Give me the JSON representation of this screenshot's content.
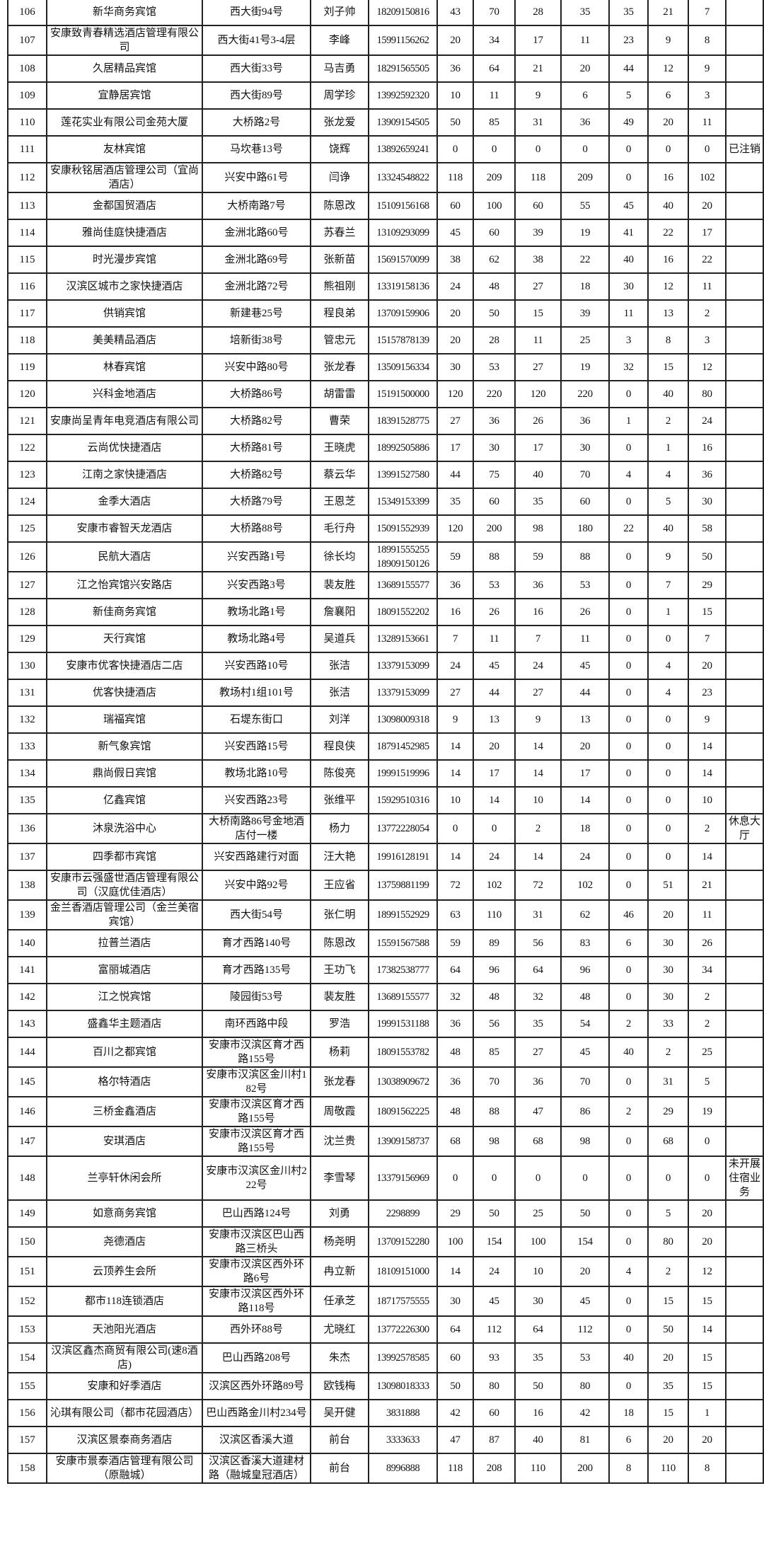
{
  "table": {
    "rows": [
      [
        "106",
        "新华商务宾馆",
        "西大街94号",
        "刘子帅",
        "18209150816",
        "43",
        "70",
        "28",
        "35",
        "35",
        "21",
        "7",
        ""
      ],
      [
        "107",
        "安康致青春精选酒店管理有限公司",
        "西大街41号3-4层",
        "李峰",
        "15991156262",
        "20",
        "34",
        "17",
        "11",
        "23",
        "9",
        "8",
        ""
      ],
      [
        "108",
        "久居精品宾馆",
        "西大街33号",
        "马吉勇",
        "18291565505",
        "36",
        "64",
        "21",
        "20",
        "44",
        "12",
        "9",
        ""
      ],
      [
        "109",
        "宜静居宾馆",
        "西大街89号",
        "周学珍",
        "13992592320",
        "10",
        "11",
        "9",
        "6",
        "5",
        "6",
        "3",
        ""
      ],
      [
        "110",
        "莲花实业有限公司金苑大厦",
        "大桥路2号",
        "张龙爱",
        "13909154505",
        "50",
        "85",
        "31",
        "36",
        "49",
        "20",
        "11",
        ""
      ],
      [
        "111",
        "友林宾馆",
        "马坎巷13号",
        "饶辉",
        "13892659241",
        "0",
        "0",
        "0",
        "0",
        "0",
        "0",
        "0",
        "已注销"
      ],
      [
        "112",
        "安康秋铭居酒店管理公司（宜尚酒店）",
        "兴安中路61号",
        "闫诤",
        "13324548822",
        "118",
        "209",
        "118",
        "209",
        "0",
        "16",
        "102",
        ""
      ],
      [
        "113",
        "金都国贸酒店",
        "大桥南路7号",
        "陈恩改",
        "15109156168",
        "60",
        "100",
        "60",
        "55",
        "45",
        "40",
        "20",
        ""
      ],
      [
        "114",
        "雅尚佳庭快捷酒店",
        "金洲北路60号",
        "苏春兰",
        "13109293099",
        "45",
        "60",
        "39",
        "19",
        "41",
        "22",
        "17",
        ""
      ],
      [
        "115",
        "时光漫步宾馆",
        "金洲北路69号",
        "张新苗",
        "15691570099",
        "38",
        "62",
        "38",
        "22",
        "40",
        "16",
        "22",
        ""
      ],
      [
        "116",
        "汉滨区城市之家快捷酒店",
        "金洲北路72号",
        "熊祖刚",
        "13319158136",
        "24",
        "48",
        "27",
        "18",
        "30",
        "12",
        "11",
        ""
      ],
      [
        "117",
        "供销宾馆",
        "新建巷25号",
        "程良弟",
        "13709159906",
        "20",
        "50",
        "15",
        "39",
        "11",
        "13",
        "2",
        ""
      ],
      [
        "118",
        "美美精品酒店",
        "培新街38号",
        "管忠元",
        "15157878139",
        "20",
        "28",
        "11",
        "25",
        "3",
        "8",
        "3",
        ""
      ],
      [
        "119",
        "林春宾馆",
        "兴安中路80号",
        "张龙春",
        "13509156334",
        "30",
        "53",
        "27",
        "19",
        "32",
        "15",
        "12",
        ""
      ],
      [
        "120",
        "兴科金地酒店",
        "大桥路86号",
        "胡雷雷",
        "15191500000",
        "120",
        "220",
        "120",
        "220",
        "0",
        "40",
        "80",
        ""
      ],
      [
        "121",
        "安康尚呈青年电竞酒店有限公司",
        "大桥路82号",
        "曹荣",
        "18391528775",
        "27",
        "36",
        "26",
        "36",
        "1",
        "2",
        "24",
        ""
      ],
      [
        "122",
        "云尚优快捷酒店",
        "大桥路81号",
        "王晓虎",
        "18992505886",
        "17",
        "30",
        "17",
        "30",
        "0",
        "1",
        "16",
        ""
      ],
      [
        "123",
        "江南之家快捷酒店",
        "大桥路82号",
        "蔡云华",
        "13991527580",
        "44",
        "75",
        "40",
        "70",
        "4",
        "4",
        "36",
        ""
      ],
      [
        "124",
        "金季大酒店",
        "大桥路79号",
        "王恩芝",
        "15349153399",
        "35",
        "60",
        "35",
        "60",
        "0",
        "5",
        "30",
        ""
      ],
      [
        "125",
        "安康市睿智天龙酒店",
        "大桥路88号",
        "毛行舟",
        "15091552939",
        "120",
        "200",
        "98",
        "180",
        "22",
        "40",
        "58",
        ""
      ],
      [
        "126",
        "民航大酒店",
        "兴安西路1号",
        "徐长均",
        "18991555255\n18909150126",
        "59",
        "88",
        "59",
        "88",
        "0",
        "9",
        "50",
        ""
      ],
      [
        "127",
        "江之怡宾馆兴安路店",
        "兴安西路3号",
        "裴友胜",
        "13689155577",
        "36",
        "53",
        "36",
        "53",
        "0",
        "7",
        "29",
        ""
      ],
      [
        "128",
        "新佳商务宾馆",
        "教场北路1号",
        "詹襄阳",
        "18091552202",
        "16",
        "26",
        "16",
        "26",
        "0",
        "1",
        "15",
        ""
      ],
      [
        "129",
        "天行宾馆",
        "教场北路4号",
        "吴道兵",
        "13289153661",
        "7",
        "11",
        "7",
        "11",
        "0",
        "0",
        "7",
        ""
      ],
      [
        "130",
        "安康市优客快捷酒店二店",
        "兴安西路10号",
        "张洁",
        "13379153099",
        "24",
        "45",
        "24",
        "45",
        "0",
        "4",
        "20",
        ""
      ],
      [
        "131",
        "优客快捷酒店",
        "教场村1组101号",
        "张洁",
        "13379153099",
        "27",
        "44",
        "27",
        "44",
        "0",
        "4",
        "23",
        ""
      ],
      [
        "132",
        "瑞福宾馆",
        "石堤东街口",
        "刘洋",
        "13098009318",
        "9",
        "13",
        "9",
        "13",
        "0",
        "0",
        "9",
        ""
      ],
      [
        "133",
        "新气象宾馆",
        "兴安西路15号",
        "程良侠",
        "18791452985",
        "14",
        "20",
        "14",
        "20",
        "0",
        "0",
        "14",
        ""
      ],
      [
        "134",
        "鼎尚假日宾馆",
        "教场北路10号",
        "陈俊亮",
        "19991519996",
        "14",
        "17",
        "14",
        "17",
        "0",
        "0",
        "14",
        ""
      ],
      [
        "135",
        "亿鑫宾馆",
        "兴安西路23号",
        "张维平",
        "15929510316",
        "10",
        "14",
        "10",
        "14",
        "0",
        "0",
        "10",
        ""
      ],
      [
        "136",
        "沐泉洗浴中心",
        "大桥南路86号金地酒店付一楼",
        "杨力",
        "13772228054",
        "0",
        "0",
        "2",
        "18",
        "0",
        "0",
        "2",
        "休息大厅"
      ],
      [
        "137",
        "四季都市宾馆",
        "兴安西路建行对面",
        "汪大艳",
        "19916128191",
        "14",
        "24",
        "14",
        "24",
        "0",
        "0",
        "14",
        ""
      ],
      [
        "138",
        "安康市云强盛世酒店管理有限公司（汉庭优佳酒店）",
        "兴安中路92号",
        "王应省",
        "13759881199",
        "72",
        "102",
        "72",
        "102",
        "0",
        "51",
        "21",
        ""
      ],
      [
        "139",
        "金兰香酒店管理公司（金兰美宿宾馆）",
        "西大街54号",
        "张仁明",
        "18991552929",
        "63",
        "110",
        "31",
        "62",
        "46",
        "20",
        "11",
        ""
      ],
      [
        "140",
        "拉普兰酒店",
        "育才西路140号",
        "陈恩改",
        "15591567588",
        "59",
        "89",
        "56",
        "83",
        "6",
        "30",
        "26",
        ""
      ],
      [
        "141",
        "富丽城酒店",
        "育才西路135号",
        "王功飞",
        "17382538777",
        "64",
        "96",
        "64",
        "96",
        "0",
        "30",
        "34",
        ""
      ],
      [
        "142",
        "江之悦宾馆",
        "陵园街53号",
        "裴友胜",
        "13689155577",
        "32",
        "48",
        "32",
        "48",
        "0",
        "30",
        "2",
        ""
      ],
      [
        "143",
        "盛鑫华主题酒店",
        "南环西路中段",
        "罗浩",
        "19991531188",
        "36",
        "56",
        "35",
        "54",
        "2",
        "33",
        "2",
        ""
      ],
      [
        "144",
        "百川之都宾馆",
        "安康市汉滨区育才西路155号",
        "杨莉",
        "18091553782",
        "48",
        "85",
        "27",
        "45",
        "40",
        "2",
        "25",
        ""
      ],
      [
        "145",
        "格尔特酒店",
        "安康市汉滨区金川村182号",
        "张龙春",
        "13038909672",
        "36",
        "70",
        "36",
        "70",
        "0",
        "31",
        "5",
        ""
      ],
      [
        "146",
        "三桥金鑫酒店",
        "安康市汉滨区育才西路155号",
        "周敬霞",
        "18091562225",
        "48",
        "88",
        "47",
        "86",
        "2",
        "29",
        "19",
        ""
      ],
      [
        "147",
        "安琪酒店",
        "安康市汉滨区育才西路155号",
        "沈兰贵",
        "13909158737",
        "68",
        "98",
        "68",
        "98",
        "0",
        "68",
        "0",
        ""
      ],
      [
        "148",
        "兰亭轩休闲会所",
        "安康市汉滨区金川村222号",
        "李雪琴",
        "13379156969",
        "0",
        "0",
        "0",
        "0",
        "0",
        "0",
        "0",
        "未开展住宿业务"
      ],
      [
        "149",
        "如意商务宾馆",
        "巴山西路124号",
        "刘勇",
        "2298899",
        "29",
        "50",
        "25",
        "50",
        "0",
        "5",
        "20",
        ""
      ],
      [
        "150",
        "尧德酒店",
        "安康市汉滨区巴山西路三桥头",
        "杨尧明",
        "13709152280",
        "100",
        "154",
        "100",
        "154",
        "0",
        "80",
        "20",
        ""
      ],
      [
        "151",
        "云顶养生会所",
        "安康市汉滨区西外环路6号",
        "冉立新",
        "18109151000",
        "14",
        "24",
        "10",
        "20",
        "4",
        "2",
        "12",
        ""
      ],
      [
        "152",
        "都市118连锁酒店",
        "安康市汉滨区西外环路118号",
        "任承芝",
        "18717575555",
        "30",
        "45",
        "30",
        "45",
        "0",
        "15",
        "15",
        ""
      ],
      [
        "153",
        "天池阳光酒店",
        "西外环88号",
        "尤晓红",
        "13772226300",
        "64",
        "112",
        "64",
        "112",
        "0",
        "50",
        "14",
        ""
      ],
      [
        "154",
        "汉滨区鑫杰商贸有限公司(速8酒店)",
        "巴山西路208号",
        "朱杰",
        "13992578585",
        "60",
        "93",
        "35",
        "53",
        "40",
        "20",
        "15",
        ""
      ],
      [
        "155",
        "安康和好季酒店",
        "汉滨区西外环路89号",
        "欧钱梅",
        "13098018333",
        "50",
        "80",
        "50",
        "80",
        "0",
        "35",
        "15",
        ""
      ],
      [
        "156",
        "沁琪有限公司（都市花园酒店）",
        "巴山西路金川村234号",
        "吴开健",
        "3831888",
        "42",
        "60",
        "16",
        "42",
        "18",
        "15",
        "1",
        ""
      ],
      [
        "157",
        "汉滨区景泰商务酒店",
        "汉滨区香溪大道",
        "前台",
        "3333633",
        "47",
        "87",
        "40",
        "81",
        "6",
        "20",
        "20",
        ""
      ],
      [
        "158",
        "安康市景泰酒店管理有限公司（原融城）",
        "汉滨区香溪大道建材路（融城皇冠酒店）",
        "前台",
        "8996888",
        "118",
        "208",
        "110",
        "200",
        "8",
        "110",
        "8",
        ""
      ]
    ]
  }
}
